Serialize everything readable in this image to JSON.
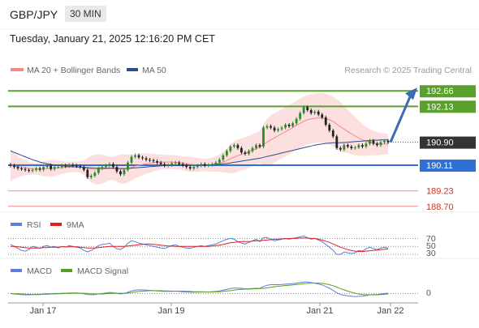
{
  "header": {
    "symbol": "GBP/JPY",
    "timeframe": "30 MIN"
  },
  "timestamp": "Tuesday, January 21, 2025 12:16:20 PM CET",
  "colors": {
    "ma20": "#f08a8a",
    "ma50": "#2b4d8c",
    "green": "#5aa02c",
    "blue": "#2f6fd6",
    "red": "#e05a5a",
    "dark": "#333333",
    "up": "#2c8a2c",
    "down": "#222222",
    "band": "#fbd9d9",
    "rsi": "#5b7fd6",
    "rsi9ma": "#e02020",
    "macd": "#5b7fd6",
    "macd_signal": "#55a020"
  },
  "chart_data": [
    {
      "type": "line",
      "panel": "price",
      "legend": [
        {
          "label": "MA 20 + Bollinger Bands",
          "color": "#f08a8a"
        },
        {
          "label": "MA 50",
          "color": "#2b4d8c"
        }
      ],
      "credit": "Research © 2025 Trading Central",
      "x_ticks": [
        "Jan 17",
        "Jan 19",
        "Jan 21",
        "Jan 22"
      ],
      "ylim": [
        188.5,
        193.0
      ],
      "levels": [
        {
          "label": "192.66",
          "value": 192.66,
          "color": "#5aa02c",
          "style": "tag"
        },
        {
          "label": "192.13",
          "value": 192.13,
          "color": "#5aa02c",
          "style": "tag"
        },
        {
          "label": "190.90",
          "value": 190.9,
          "color": "#333333",
          "style": "current"
        },
        {
          "label": "190.11",
          "value": 190.11,
          "color": "#2f6fd6",
          "style": "tag"
        },
        {
          "label": "189.23",
          "value": 189.23,
          "color": "#f08a8a",
          "style": "text"
        },
        {
          "label": "188.70",
          "value": 188.7,
          "color": "#f08a8a",
          "style": "text"
        }
      ],
      "close": [
        190.1,
        190.05,
        190.0,
        189.98,
        189.95,
        189.92,
        189.95,
        190.0,
        189.96,
        190.05,
        190.1,
        189.98,
        190.05,
        190.05,
        190.1,
        190.08,
        190.12,
        190.1,
        190.08,
        190.05,
        189.95,
        189.7,
        189.75,
        189.85,
        190.0,
        190.05,
        190.1,
        190.15,
        190.05,
        189.9,
        189.8,
        189.95,
        190.2,
        190.4,
        190.45,
        190.38,
        190.35,
        190.3,
        190.28,
        190.25,
        190.2,
        190.15,
        190.1,
        190.12,
        190.18,
        190.2,
        190.15,
        190.1,
        190.05,
        190.0,
        190.05,
        190.1,
        190.15,
        190.1,
        190.12,
        190.15,
        190.2,
        190.3,
        190.45,
        190.6,
        190.75,
        190.8,
        190.7,
        190.55,
        190.5,
        190.6,
        190.7,
        190.8,
        190.75,
        191.4,
        191.45,
        191.4,
        191.3,
        191.35,
        191.4,
        191.5,
        191.45,
        191.55,
        191.7,
        191.9,
        192.1,
        192.0,
        191.9,
        191.95,
        191.85,
        191.75,
        191.5,
        191.3,
        191.1,
        190.7,
        190.65,
        190.8,
        190.75,
        190.7,
        190.72,
        190.8,
        190.75,
        190.85,
        190.95,
        190.85,
        190.8,
        190.9,
        190.95,
        190.9
      ],
      "ma20": [
        190.1,
        190.08,
        190.06,
        190.04,
        190.02,
        190.0,
        189.99,
        189.99,
        189.98,
        189.99,
        190.0,
        190.0,
        190.01,
        190.02,
        190.03,
        190.04,
        190.05,
        190.05,
        190.06,
        190.05,
        190.03,
        190.0,
        189.98,
        189.97,
        189.97,
        189.98,
        189.99,
        190.0,
        190.0,
        189.99,
        189.98,
        189.98,
        190.0,
        190.04,
        190.08,
        190.11,
        190.14,
        190.16,
        190.18,
        190.2,
        190.21,
        190.22,
        190.22,
        190.22,
        190.22,
        190.21,
        190.2,
        190.18,
        190.16,
        190.14,
        190.13,
        190.12,
        190.12,
        190.12,
        190.12,
        190.13,
        190.15,
        190.18,
        190.22,
        190.27,
        190.33,
        190.39,
        190.44,
        190.48,
        190.52,
        190.57,
        190.62,
        190.68,
        190.73,
        190.82,
        190.9,
        190.98,
        191.05,
        191.12,
        191.19,
        191.26,
        191.33,
        191.4,
        191.48,
        191.55,
        191.62,
        191.67,
        191.7,
        191.72,
        191.73,
        191.73,
        191.71,
        191.67,
        191.61,
        191.52,
        191.43,
        191.35,
        191.27,
        191.19,
        191.11,
        191.04,
        190.98,
        190.93,
        190.9,
        190.87,
        190.85,
        190.84,
        190.84,
        190.84
      ],
      "bb_width": [
        0.55,
        0.45,
        0.38,
        0.3,
        0.25,
        0.22,
        0.2,
        0.2,
        0.22,
        0.25,
        0.28,
        0.3,
        0.28,
        0.25,
        0.22,
        0.2,
        0.18,
        0.18,
        0.18,
        0.2,
        0.25,
        0.35,
        0.45,
        0.5,
        0.52,
        0.5,
        0.45,
        0.4,
        0.4,
        0.45,
        0.5,
        0.5,
        0.48,
        0.45,
        0.42,
        0.4,
        0.38,
        0.35,
        0.33,
        0.3,
        0.28,
        0.26,
        0.25,
        0.24,
        0.24,
        0.24,
        0.24,
        0.24,
        0.25,
        0.26,
        0.25,
        0.24,
        0.22,
        0.22,
        0.22,
        0.24,
        0.26,
        0.3,
        0.35,
        0.42,
        0.5,
        0.55,
        0.55,
        0.55,
        0.55,
        0.55,
        0.55,
        0.55,
        0.55,
        0.7,
        0.8,
        0.85,
        0.85,
        0.85,
        0.85,
        0.85,
        0.85,
        0.85,
        0.85,
        0.85,
        0.85,
        0.85,
        0.85,
        0.85,
        0.85,
        0.85,
        0.85,
        0.85,
        0.85,
        0.85,
        0.85,
        0.8,
        0.75,
        0.7,
        0.65,
        0.6,
        0.55,
        0.5,
        0.45,
        0.42,
        0.4,
        0.38,
        0.36,
        0.35
      ],
      "ma50": [
        190.6,
        190.55,
        190.5,
        190.45,
        190.4,
        190.35,
        190.3,
        190.26,
        190.22,
        190.19,
        190.16,
        190.14,
        190.12,
        190.1,
        190.09,
        190.08,
        190.07,
        190.06,
        190.05,
        190.05,
        190.04,
        190.03,
        190.02,
        190.01,
        190.01,
        190.01,
        190.01,
        190.01,
        190.01,
        190.0,
        190.0,
        190.0,
        190.0,
        190.01,
        190.02,
        190.03,
        190.04,
        190.05,
        190.06,
        190.07,
        190.08,
        190.09,
        190.1,
        190.1,
        190.11,
        190.11,
        190.11,
        190.11,
        190.11,
        190.11,
        190.11,
        190.11,
        190.11,
        190.12,
        190.12,
        190.13,
        190.14,
        190.15,
        190.16,
        190.17,
        190.19,
        190.21,
        190.23,
        190.25,
        190.27,
        190.29,
        190.31,
        190.33,
        190.35,
        190.38,
        190.41,
        190.44,
        190.47,
        190.5,
        190.53,
        190.56,
        190.59,
        190.62,
        190.65,
        190.68,
        190.71,
        190.74,
        190.77,
        190.8,
        190.82,
        190.84,
        190.86,
        190.87,
        190.88,
        190.88,
        190.88,
        190.89,
        190.9,
        190.91,
        190.92,
        190.93,
        190.94,
        190.95,
        190.96,
        190.97,
        190.97,
        190.98,
        190.98,
        190.98
      ]
    },
    {
      "type": "line",
      "panel": "rsi",
      "legend": [
        {
          "label": "RSI",
          "color": "#5b7fd6"
        },
        {
          "label": "9MA",
          "color": "#e02020"
        }
      ],
      "y_ticks": [
        "70",
        "50",
        "30"
      ],
      "ylim": [
        20,
        85
      ],
      "rsi": [
        55,
        50,
        45,
        40,
        38,
        42,
        50,
        48,
        45,
        50,
        52,
        48,
        50,
        46,
        50,
        48,
        52,
        50,
        48,
        46,
        40,
        36,
        40,
        45,
        52,
        55,
        56,
        58,
        50,
        44,
        42,
        48,
        58,
        64,
        62,
        58,
        56,
        54,
        52,
        50,
        48,
        46,
        45,
        48,
        52,
        54,
        50,
        48,
        46,
        45,
        48,
        50,
        52,
        50,
        52,
        54,
        56,
        60,
        64,
        68,
        70,
        68,
        62,
        58,
        56,
        60,
        64,
        68,
        62,
        72,
        72,
        68,
        64,
        66,
        68,
        70,
        68,
        70,
        72,
        74,
        76,
        72,
        68,
        70,
        66,
        62,
        55,
        48,
        40,
        30,
        30,
        36,
        34,
        32,
        34,
        40,
        38,
        44,
        48,
        44,
        42,
        46,
        48,
        46
      ],
      "ma9": [
        50,
        50,
        49,
        48,
        47,
        46,
        46,
        46,
        46,
        47,
        47,
        48,
        48,
        48,
        49,
        49,
        49,
        49,
        49,
        48,
        47,
        46,
        46,
        46,
        47,
        48,
        49,
        50,
        50,
        50,
        50,
        50,
        51,
        52,
        53,
        54,
        55,
        56,
        56,
        55,
        54,
        53,
        52,
        51,
        51,
        50,
        50,
        50,
        50,
        50,
        50,
        50,
        50,
        50,
        50,
        51,
        52,
        53,
        55,
        57,
        59,
        60,
        61,
        62,
        62,
        62,
        63,
        64,
        64,
        65,
        66,
        67,
        68,
        68,
        69,
        69,
        70,
        70,
        70,
        71,
        71,
        71,
        70,
        70,
        68,
        66,
        63,
        60,
        56,
        52,
        48,
        45,
        42,
        40,
        38,
        37,
        37,
        38,
        39,
        40,
        41,
        42,
        43,
        44
      ]
    },
    {
      "type": "line",
      "panel": "macd",
      "legend": [
        {
          "label": "MACD",
          "color": "#5b7fd6"
        },
        {
          "label": "MACD Signal",
          "color": "#55a020"
        }
      ],
      "y_ticks": [
        "0"
      ],
      "ylim": [
        -0.3,
        0.7
      ],
      "macd": [
        0.0,
        -0.02,
        -0.03,
        -0.04,
        -0.05,
        -0.05,
        -0.04,
        -0.03,
        -0.03,
        -0.02,
        -0.01,
        -0.01,
        0.0,
        0.0,
        0.01,
        0.01,
        0.02,
        0.02,
        0.02,
        0.01,
        -0.01,
        -0.04,
        -0.05,
        -0.04,
        -0.02,
        0.0,
        0.02,
        0.04,
        0.03,
        0.0,
        -0.02,
        0.0,
        0.05,
        0.1,
        0.13,
        0.14,
        0.14,
        0.13,
        0.12,
        0.11,
        0.1,
        0.09,
        0.08,
        0.08,
        0.08,
        0.09,
        0.08,
        0.07,
        0.06,
        0.05,
        0.05,
        0.05,
        0.06,
        0.06,
        0.06,
        0.07,
        0.08,
        0.1,
        0.13,
        0.16,
        0.19,
        0.21,
        0.21,
        0.2,
        0.18,
        0.18,
        0.19,
        0.2,
        0.2,
        0.27,
        0.32,
        0.34,
        0.34,
        0.34,
        0.35,
        0.36,
        0.37,
        0.38,
        0.4,
        0.42,
        0.44,
        0.44,
        0.42,
        0.4,
        0.37,
        0.33,
        0.27,
        0.2,
        0.12,
        0.03,
        -0.04,
        -0.07,
        -0.09,
        -0.11,
        -0.12,
        -0.11,
        -0.1,
        -0.08,
        -0.05,
        -0.04,
        -0.04,
        -0.02,
        0.0,
        0.01
      ],
      "signal": [
        0.0,
        -0.01,
        -0.01,
        -0.02,
        -0.03,
        -0.03,
        -0.04,
        -0.04,
        -0.04,
        -0.03,
        -0.03,
        -0.02,
        -0.02,
        -0.01,
        -0.01,
        0.0,
        0.0,
        0.01,
        0.01,
        0.01,
        0.01,
        0.0,
        -0.01,
        -0.02,
        -0.02,
        -0.02,
        -0.01,
        0.0,
        0.01,
        0.01,
        0.01,
        0.01,
        0.02,
        0.04,
        0.06,
        0.08,
        0.09,
        0.1,
        0.11,
        0.11,
        0.11,
        0.11,
        0.1,
        0.1,
        0.09,
        0.09,
        0.09,
        0.09,
        0.08,
        0.08,
        0.07,
        0.07,
        0.07,
        0.06,
        0.06,
        0.06,
        0.07,
        0.07,
        0.08,
        0.1,
        0.11,
        0.13,
        0.15,
        0.16,
        0.17,
        0.17,
        0.18,
        0.18,
        0.19,
        0.2,
        0.22,
        0.24,
        0.26,
        0.28,
        0.29,
        0.31,
        0.32,
        0.33,
        0.35,
        0.36,
        0.38,
        0.39,
        0.4,
        0.4,
        0.4,
        0.39,
        0.37,
        0.34,
        0.3,
        0.25,
        0.19,
        0.14,
        0.09,
        0.05,
        0.01,
        -0.02,
        -0.04,
        -0.05,
        -0.05,
        -0.05,
        -0.05,
        -0.04,
        -0.03,
        -0.02
      ]
    }
  ]
}
